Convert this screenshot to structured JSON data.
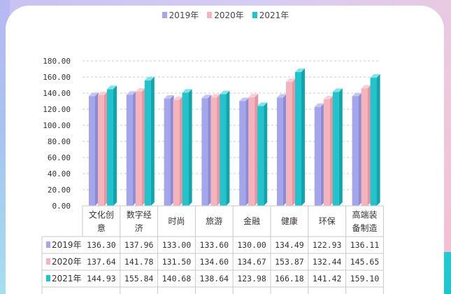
{
  "chart_data": {
    "type": "bar",
    "categories": [
      [
        "文化创",
        "意"
      ],
      [
        "数字经",
        "济"
      ],
      [
        "时尚"
      ],
      [
        "旅游"
      ],
      [
        "金融"
      ],
      [
        "健康"
      ],
      [
        "环保"
      ],
      [
        "高端装",
        "备制造"
      ]
    ],
    "series": [
      {
        "name": "2019年",
        "values": [
          136.3,
          137.96,
          133.0,
          133.6,
          130.0,
          134.49,
          122.93,
          136.11
        ],
        "labels": [
          "136.30",
          "137.96",
          "133.00",
          "133.60",
          "130.00",
          "134.49",
          "122.93",
          "136.11"
        ],
        "color": "#a4a6ec",
        "top": "#c3c5f3",
        "side": "#8a8cd6"
      },
      {
        "name": "2020年",
        "values": [
          137.64,
          141.78,
          131.5,
          134.6,
          134.67,
          153.87,
          132.44,
          145.65
        ],
        "labels": [
          "137.64",
          "141.78",
          "131.50",
          "134.60",
          "134.67",
          "153.87",
          "132.44",
          "145.65"
        ],
        "color": "#f5b3bb",
        "top": "#f9cfd5",
        "side": "#e596a0"
      },
      {
        "name": "2021年",
        "values": [
          144.93,
          155.84,
          140.68,
          138.64,
          123.98,
          166.18,
          141.42,
          159.1
        ],
        "labels": [
          "144.93",
          "155.84",
          "140.68",
          "138.64",
          "123.98",
          "166.18",
          "141.42",
          "159.10"
        ],
        "color": "#21c4cc",
        "top": "#7fe3e7",
        "side": "#11a4ac"
      }
    ],
    "yticks": [
      "0.00",
      "20.00",
      "40.00",
      "60.00",
      "80.00",
      "100.00",
      "120.00",
      "140.00",
      "160.00",
      "180.00"
    ],
    "ylim": [
      0,
      180
    ],
    "grid": true,
    "legend": "top-center",
    "data_table": true
  }
}
